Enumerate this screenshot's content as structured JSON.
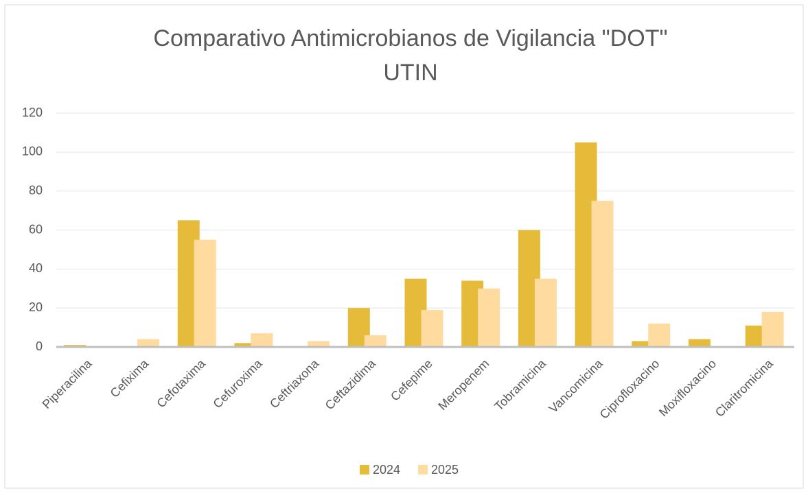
{
  "chart_data": {
    "type": "bar",
    "title": [
      "Comparativo Antimicrobianos de Vigilancia \"DOT\"",
      "UTIN"
    ],
    "categories": [
      "Piperacilina",
      "Cefixima",
      "Cefotaxima",
      "Cefuroxima",
      "Ceftriaxona",
      "Ceftazidima",
      "Cefepime",
      "Meropenem",
      "Tobramicina",
      "Vancomicina",
      "Ciprofloxacino",
      "Moxifloxacino",
      "Claritromicina"
    ],
    "series": [
      {
        "name": "2024",
        "color": "#e6bb3a",
        "values": [
          1,
          0,
          65,
          2,
          0,
          20,
          35,
          34,
          60,
          105,
          3,
          4,
          11
        ]
      },
      {
        "name": "2025",
        "color": "#ffdba0",
        "values": [
          0,
          4,
          55,
          7,
          3,
          6,
          19,
          30,
          35,
          75,
          12,
          0,
          18
        ]
      }
    ],
    "ylim": [
      0,
      120
    ],
    "yticks": [
      0,
      20,
      40,
      60,
      80,
      100,
      120
    ],
    "grid": true,
    "legend": "bottom"
  }
}
